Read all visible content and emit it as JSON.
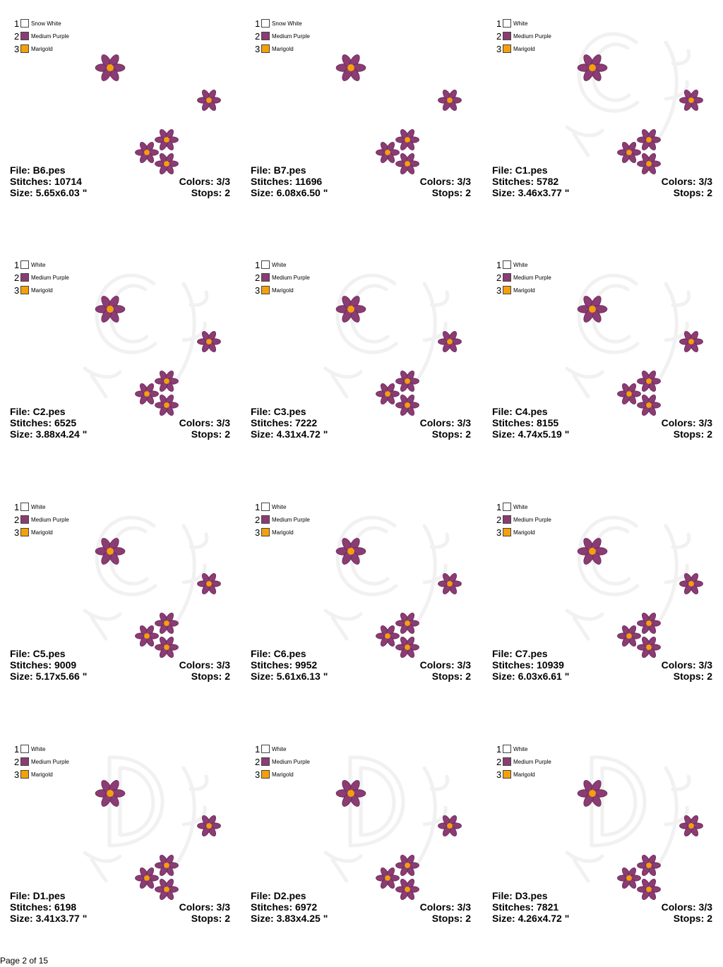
{
  "legend_colors": [
    "#ffffff",
    "#8a3c73",
    "#f5a00a"
  ],
  "flower_colors": {
    "petal": "#8a3c73",
    "petal_edge": "#6a2858",
    "center": "#f5a00a"
  },
  "cells": [
    {
      "file": "File: B6.pes",
      "stitches": "Stitches: 10714",
      "size": "Size: 5.65x6.03 \"",
      "colors": "Colors: 3/3",
      "stops": "Stops: 2",
      "monogram": "",
      "legend": [
        "Snow White",
        "Medium Purple",
        "Marigold"
      ]
    },
    {
      "file": "File: B7.pes",
      "stitches": "Stitches: 11696",
      "size": "Size: 6.08x6.50 \"",
      "colors": "Colors: 3/3",
      "stops": "Stops: 2",
      "monogram": "",
      "legend": [
        "Snow White",
        "Medium Purple",
        "Marigold"
      ]
    },
    {
      "file": "File: C1.pes",
      "stitches": "Stitches: 5782",
      "size": "Size: 3.46x3.77 \"",
      "colors": "Colors: 3/3",
      "stops": "Stops: 2",
      "monogram": "C",
      "legend": [
        "White",
        "Medium Purple",
        "Marigold"
      ]
    },
    {
      "file": "File: C2.pes",
      "stitches": "Stitches: 6525",
      "size": "Size: 3.88x4.24 \"",
      "colors": "Colors: 3/3",
      "stops": "Stops: 2",
      "monogram": "C",
      "legend": [
        "White",
        "Medium Purple",
        "Marigold"
      ]
    },
    {
      "file": "File: C3.pes",
      "stitches": "Stitches: 7222",
      "size": "Size: 4.31x4.72 \"",
      "colors": "Colors: 3/3",
      "stops": "Stops: 2",
      "monogram": "C",
      "legend": [
        "White",
        "Medium Purple",
        "Marigold"
      ]
    },
    {
      "file": "File: C4.pes",
      "stitches": "Stitches: 8155",
      "size": "Size: 4.74x5.19 \"",
      "colors": "Colors: 3/3",
      "stops": "Stops: 2",
      "monogram": "C",
      "legend": [
        "White",
        "Medium Purple",
        "Marigold"
      ]
    },
    {
      "file": "File: C5.pes",
      "stitches": "Stitches: 9009",
      "size": "Size: 5.17x5.66 \"",
      "colors": "Colors: 3/3",
      "stops": "Stops: 2",
      "monogram": "C",
      "legend": [
        "White",
        "Medium Purple",
        "Marigold"
      ]
    },
    {
      "file": "File: C6.pes",
      "stitches": "Stitches: 9952",
      "size": "Size: 5.61x6.13 \"",
      "colors": "Colors: 3/3",
      "stops": "Stops: 2",
      "monogram": "C",
      "legend": [
        "White",
        "Medium Purple",
        "Marigold"
      ]
    },
    {
      "file": "File: C7.pes",
      "stitches": "Stitches: 10939",
      "size": "Size: 6.03x6.61 \"",
      "colors": "Colors: 3/3",
      "stops": "Stops: 2",
      "monogram": "C",
      "legend": [
        "White",
        "Medium Purple",
        "Marigold"
      ]
    },
    {
      "file": "File: D1.pes",
      "stitches": "Stitches: 6198",
      "size": "Size: 3.41x3.77 \"",
      "colors": "Colors: 3/3",
      "stops": "Stops: 2",
      "monogram": "D",
      "legend": [
        "White",
        "Medium Purple",
        "Marigold"
      ]
    },
    {
      "file": "File: D2.pes",
      "stitches": "Stitches: 6972",
      "size": "Size: 3.83x4.25 \"",
      "colors": "Colors: 3/3",
      "stops": "Stops: 2",
      "monogram": "D",
      "legend": [
        "White",
        "Medium Purple",
        "Marigold"
      ]
    },
    {
      "file": "File: D3.pes",
      "stitches": "Stitches: 7821",
      "size": "Size: 4.26x4.72 \"",
      "colors": "Colors: 3/3",
      "stops": "Stops: 2",
      "monogram": "D",
      "legend": [
        "White",
        "Medium Purple",
        "Marigold"
      ]
    }
  ],
  "footer": {
    "page_label": "Page 2 of 15"
  }
}
